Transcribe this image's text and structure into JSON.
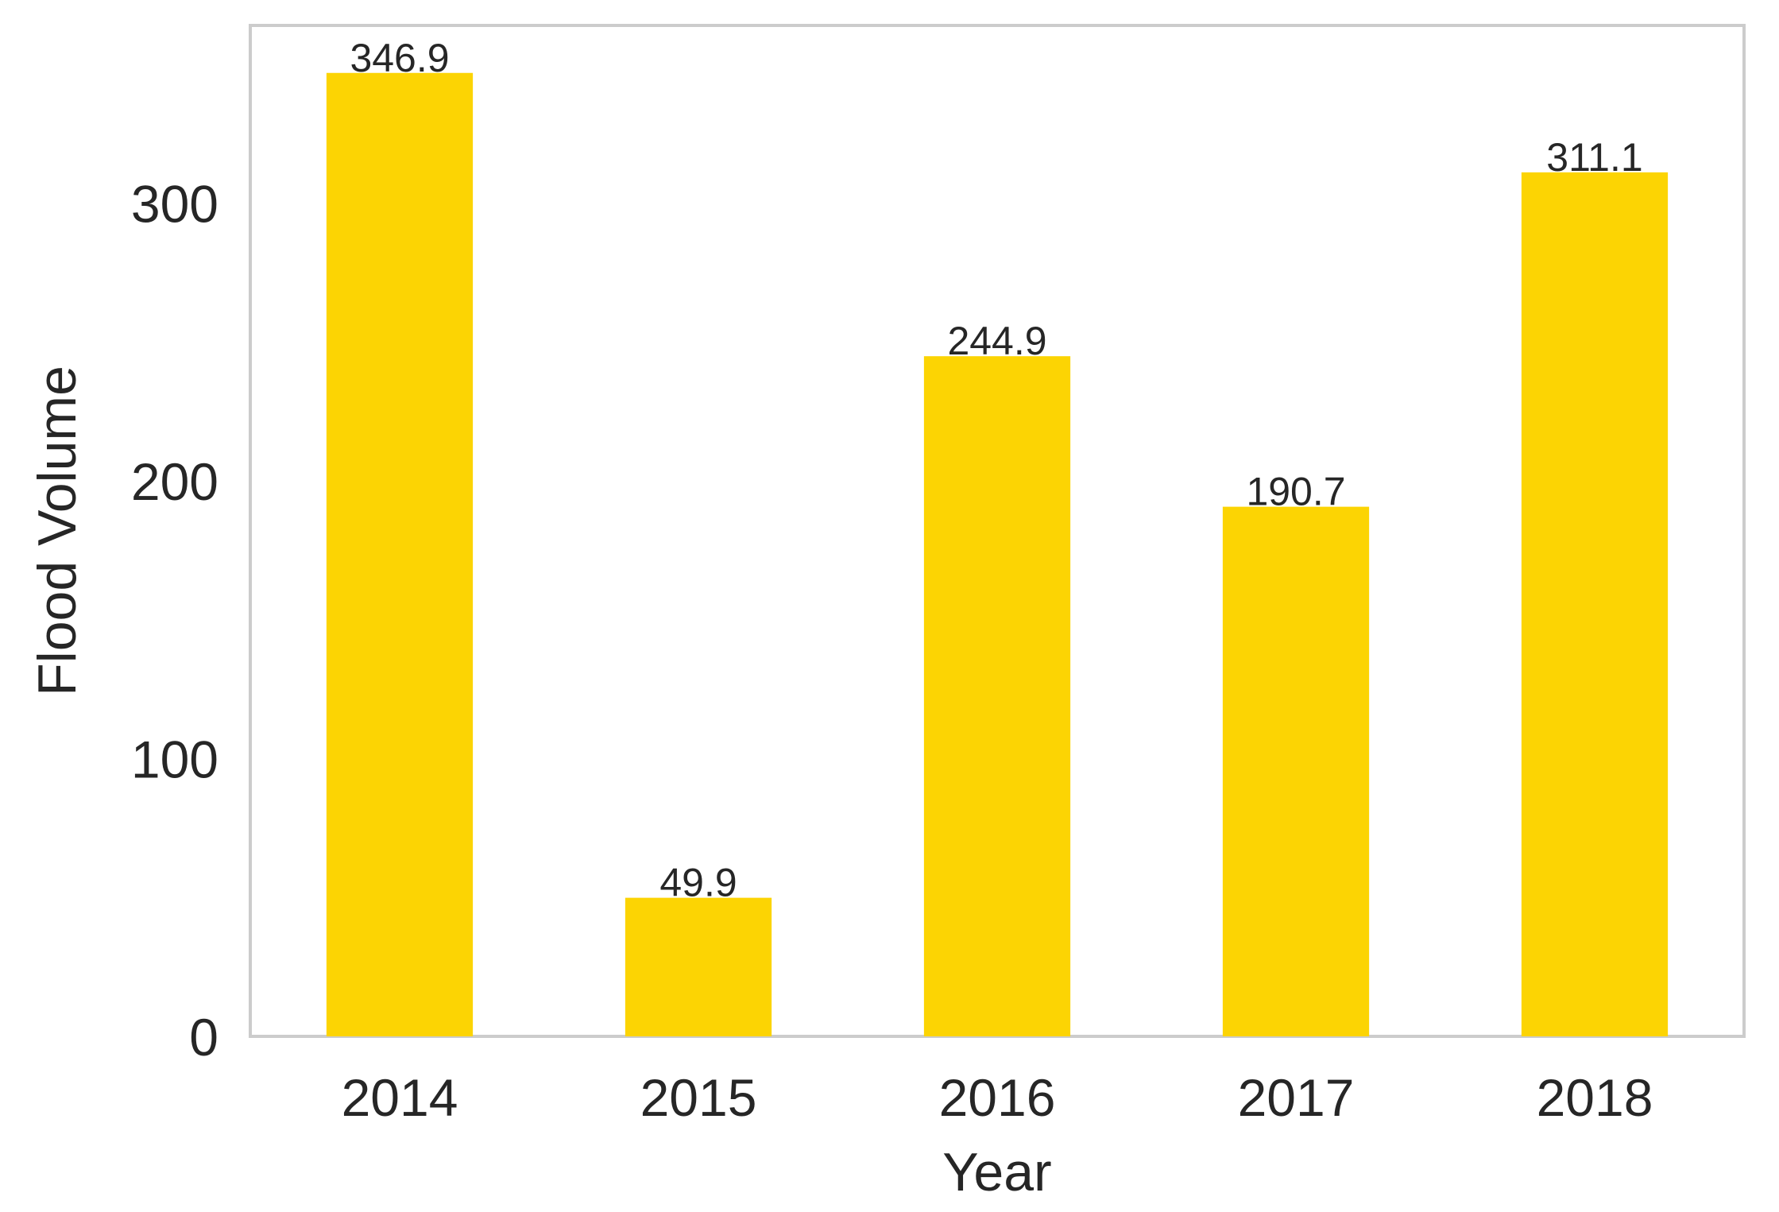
{
  "chart_data": {
    "type": "bar",
    "categories": [
      "2014",
      "2015",
      "2016",
      "2017",
      "2018"
    ],
    "values": [
      346.9,
      49.9,
      244.9,
      190.7,
      311.1
    ],
    "value_labels": [
      "346.9",
      "49.9",
      "244.9",
      "190.7",
      "311.1"
    ],
    "xlabel": "Year",
    "ylabel": "Flood Volume",
    "ylim": [
      0,
      364
    ],
    "yticks": [
      0,
      100,
      200,
      300
    ],
    "grid": false,
    "bar_color": "#FCD403",
    "frame_color": "#CCCCCC"
  }
}
